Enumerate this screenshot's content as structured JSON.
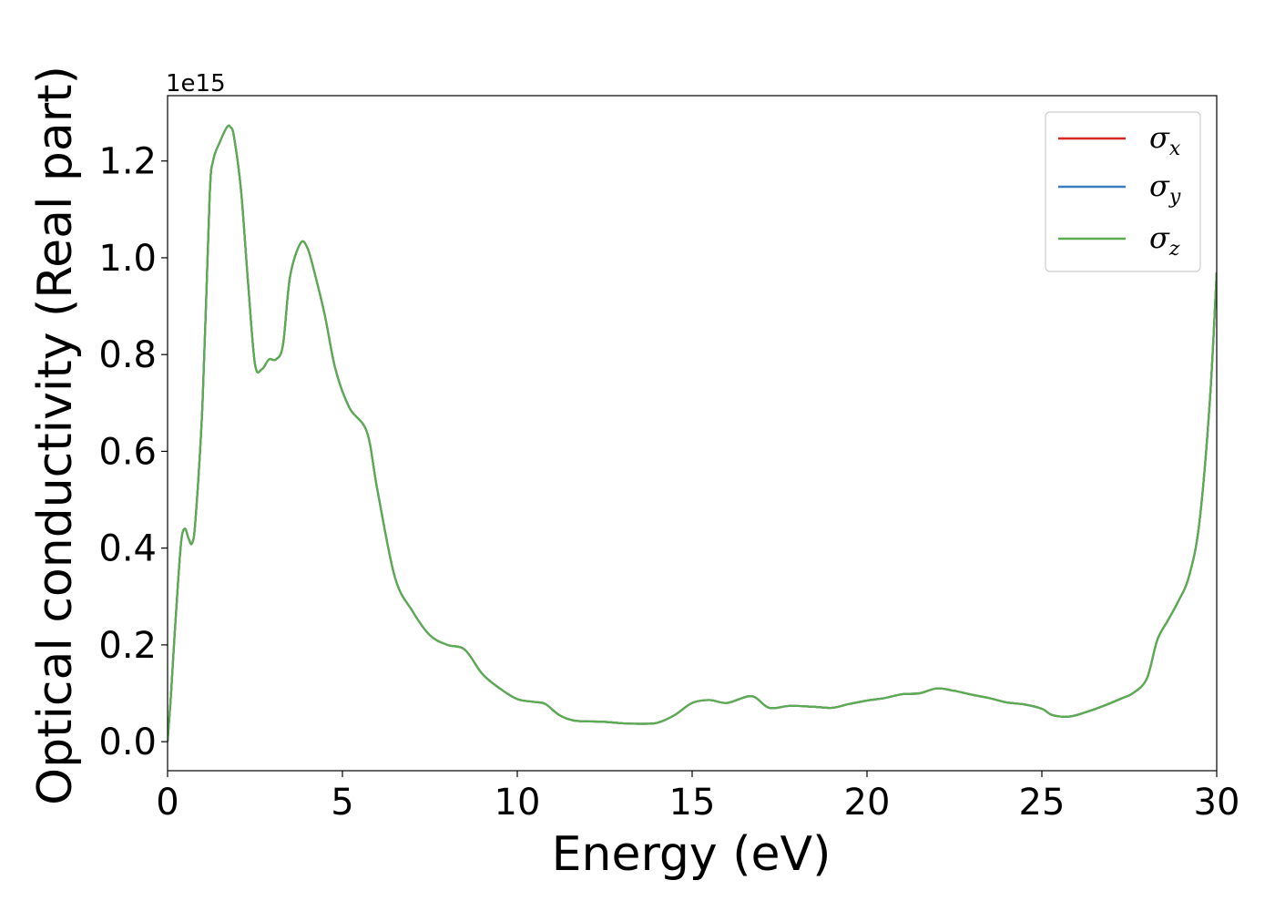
{
  "chart_data": {
    "type": "line",
    "xlabel": "Energy (eV)",
    "ylabel": "Optical conductivity (Real part)",
    "y_offset_text": "1e15",
    "y_scale_factor": 1000000000000000.0,
    "xlim": [
      0,
      30
    ],
    "ylim": [
      -0.06,
      1.335
    ],
    "xticks": [
      0,
      5,
      10,
      15,
      20,
      25,
      30
    ],
    "xtick_labels": [
      "0",
      "5",
      "10",
      "15",
      "20",
      "25",
      "30"
    ],
    "yticks": [
      0.0,
      0.2,
      0.4,
      0.6,
      0.8,
      1.0,
      1.2
    ],
    "ytick_labels": [
      "0.0",
      "0.2",
      "0.4",
      "0.6",
      "0.8",
      "1.0",
      "1.2"
    ],
    "grid": false,
    "legend_position": "top-right",
    "series": [
      {
        "name": "σx",
        "symbol": "σ",
        "subscript": "x",
        "color": "#d62728",
        "x": [
          0,
          0.1,
          0.2,
          0.3,
          0.4,
          0.5,
          0.6,
          0.7,
          0.8,
          1.0,
          1.2,
          1.3,
          1.5,
          1.7,
          1.8,
          1.9,
          2.1,
          2.3,
          2.5,
          2.7,
          2.9,
          3.1,
          3.3,
          3.5,
          3.8,
          4.0,
          4.2,
          4.5,
          4.8,
          5.2,
          5.7,
          6.0,
          6.5,
          7.0,
          7.5,
          8.0,
          8.5,
          9.0,
          9.5,
          10.0,
          10.5,
          10.8,
          11.2,
          11.6,
          12.0,
          12.5,
          13.0,
          13.5,
          14.0,
          14.5,
          15.0,
          15.5,
          16.0,
          16.7,
          17.2,
          17.8,
          18.5,
          19.0,
          19.5,
          20.0,
          20.5,
          21.0,
          21.5,
          22.0,
          22.5,
          23.0,
          23.5,
          24.0,
          24.5,
          25.0,
          25.3,
          25.8,
          26.3,
          26.8,
          27.3,
          27.6,
          28.0,
          28.3,
          28.6,
          28.9,
          29.2,
          29.5,
          29.8,
          30.0
        ],
        "values": [
          0.0,
          0.1,
          0.22,
          0.33,
          0.42,
          0.44,
          0.42,
          0.41,
          0.46,
          0.7,
          1.12,
          1.2,
          1.24,
          1.27,
          1.27,
          1.25,
          1.14,
          0.95,
          0.78,
          0.77,
          0.79,
          0.79,
          0.82,
          0.96,
          1.03,
          1.02,
          0.97,
          0.88,
          0.77,
          0.69,
          0.64,
          0.52,
          0.34,
          0.27,
          0.22,
          0.2,
          0.19,
          0.14,
          0.11,
          0.088,
          0.082,
          0.078,
          0.055,
          0.044,
          0.042,
          0.041,
          0.038,
          0.037,
          0.039,
          0.055,
          0.08,
          0.086,
          0.08,
          0.094,
          0.07,
          0.074,
          0.072,
          0.07,
          0.078,
          0.085,
          0.09,
          0.098,
          0.1,
          0.11,
          0.105,
          0.097,
          0.09,
          0.081,
          0.077,
          0.068,
          0.055,
          0.052,
          0.062,
          0.075,
          0.09,
          0.1,
          0.13,
          0.21,
          0.25,
          0.29,
          0.34,
          0.45,
          0.7,
          0.97
        ]
      },
      {
        "name": "σy",
        "symbol": "σ",
        "subscript": "y",
        "color": "#3a7ebf",
        "x": [
          0,
          0.1,
          0.2,
          0.3,
          0.4,
          0.5,
          0.6,
          0.7,
          0.8,
          1.0,
          1.2,
          1.3,
          1.5,
          1.7,
          1.8,
          1.9,
          2.1,
          2.3,
          2.5,
          2.7,
          2.9,
          3.1,
          3.3,
          3.5,
          3.8,
          4.0,
          4.2,
          4.5,
          4.8,
          5.2,
          5.7,
          6.0,
          6.5,
          7.0,
          7.5,
          8.0,
          8.5,
          9.0,
          9.5,
          10.0,
          10.5,
          10.8,
          11.2,
          11.6,
          12.0,
          12.5,
          13.0,
          13.5,
          14.0,
          14.5,
          15.0,
          15.5,
          16.0,
          16.7,
          17.2,
          17.8,
          18.5,
          19.0,
          19.5,
          20.0,
          20.5,
          21.0,
          21.5,
          22.0,
          22.5,
          23.0,
          23.5,
          24.0,
          24.5,
          25.0,
          25.3,
          25.8,
          26.3,
          26.8,
          27.3,
          27.6,
          28.0,
          28.3,
          28.6,
          28.9,
          29.2,
          29.5,
          29.8,
          30.0
        ],
        "values": [
          0.0,
          0.1,
          0.22,
          0.33,
          0.42,
          0.44,
          0.42,
          0.41,
          0.46,
          0.7,
          1.12,
          1.2,
          1.24,
          1.27,
          1.27,
          1.25,
          1.14,
          0.95,
          0.78,
          0.77,
          0.79,
          0.79,
          0.82,
          0.96,
          1.03,
          1.02,
          0.97,
          0.88,
          0.77,
          0.69,
          0.64,
          0.52,
          0.34,
          0.27,
          0.22,
          0.2,
          0.19,
          0.14,
          0.11,
          0.088,
          0.082,
          0.078,
          0.055,
          0.044,
          0.042,
          0.041,
          0.038,
          0.037,
          0.039,
          0.055,
          0.08,
          0.086,
          0.08,
          0.094,
          0.07,
          0.074,
          0.072,
          0.07,
          0.078,
          0.085,
          0.09,
          0.098,
          0.1,
          0.11,
          0.105,
          0.097,
          0.09,
          0.081,
          0.077,
          0.068,
          0.055,
          0.052,
          0.062,
          0.075,
          0.09,
          0.1,
          0.13,
          0.21,
          0.25,
          0.29,
          0.34,
          0.45,
          0.7,
          0.97
        ]
      },
      {
        "name": "σz",
        "symbol": "σ",
        "subscript": "z",
        "color": "#5aad4e",
        "x": [
          0,
          0.1,
          0.2,
          0.3,
          0.4,
          0.5,
          0.6,
          0.7,
          0.8,
          1.0,
          1.2,
          1.3,
          1.5,
          1.7,
          1.8,
          1.9,
          2.1,
          2.3,
          2.5,
          2.7,
          2.9,
          3.1,
          3.3,
          3.5,
          3.8,
          4.0,
          4.2,
          4.5,
          4.8,
          5.2,
          5.7,
          6.0,
          6.5,
          7.0,
          7.5,
          8.0,
          8.5,
          9.0,
          9.5,
          10.0,
          10.5,
          10.8,
          11.2,
          11.6,
          12.0,
          12.5,
          13.0,
          13.5,
          14.0,
          14.5,
          15.0,
          15.5,
          16.0,
          16.7,
          17.2,
          17.8,
          18.5,
          19.0,
          19.5,
          20.0,
          20.5,
          21.0,
          21.5,
          22.0,
          22.5,
          23.0,
          23.5,
          24.0,
          24.5,
          25.0,
          25.3,
          25.8,
          26.3,
          26.8,
          27.3,
          27.6,
          28.0,
          28.3,
          28.6,
          28.9,
          29.2,
          29.5,
          29.8,
          30.0
        ],
        "values": [
          0.0,
          0.1,
          0.22,
          0.33,
          0.42,
          0.44,
          0.42,
          0.41,
          0.46,
          0.7,
          1.12,
          1.2,
          1.24,
          1.27,
          1.27,
          1.25,
          1.14,
          0.95,
          0.78,
          0.77,
          0.79,
          0.79,
          0.82,
          0.96,
          1.03,
          1.02,
          0.97,
          0.88,
          0.77,
          0.69,
          0.64,
          0.52,
          0.34,
          0.27,
          0.22,
          0.2,
          0.19,
          0.14,
          0.11,
          0.088,
          0.082,
          0.078,
          0.055,
          0.044,
          0.042,
          0.041,
          0.038,
          0.037,
          0.039,
          0.055,
          0.08,
          0.086,
          0.08,
          0.094,
          0.07,
          0.074,
          0.072,
          0.07,
          0.078,
          0.085,
          0.09,
          0.098,
          0.1,
          0.11,
          0.105,
          0.097,
          0.09,
          0.081,
          0.077,
          0.068,
          0.055,
          0.052,
          0.062,
          0.075,
          0.09,
          0.1,
          0.13,
          0.21,
          0.25,
          0.29,
          0.34,
          0.45,
          0.7,
          0.97
        ]
      }
    ]
  }
}
